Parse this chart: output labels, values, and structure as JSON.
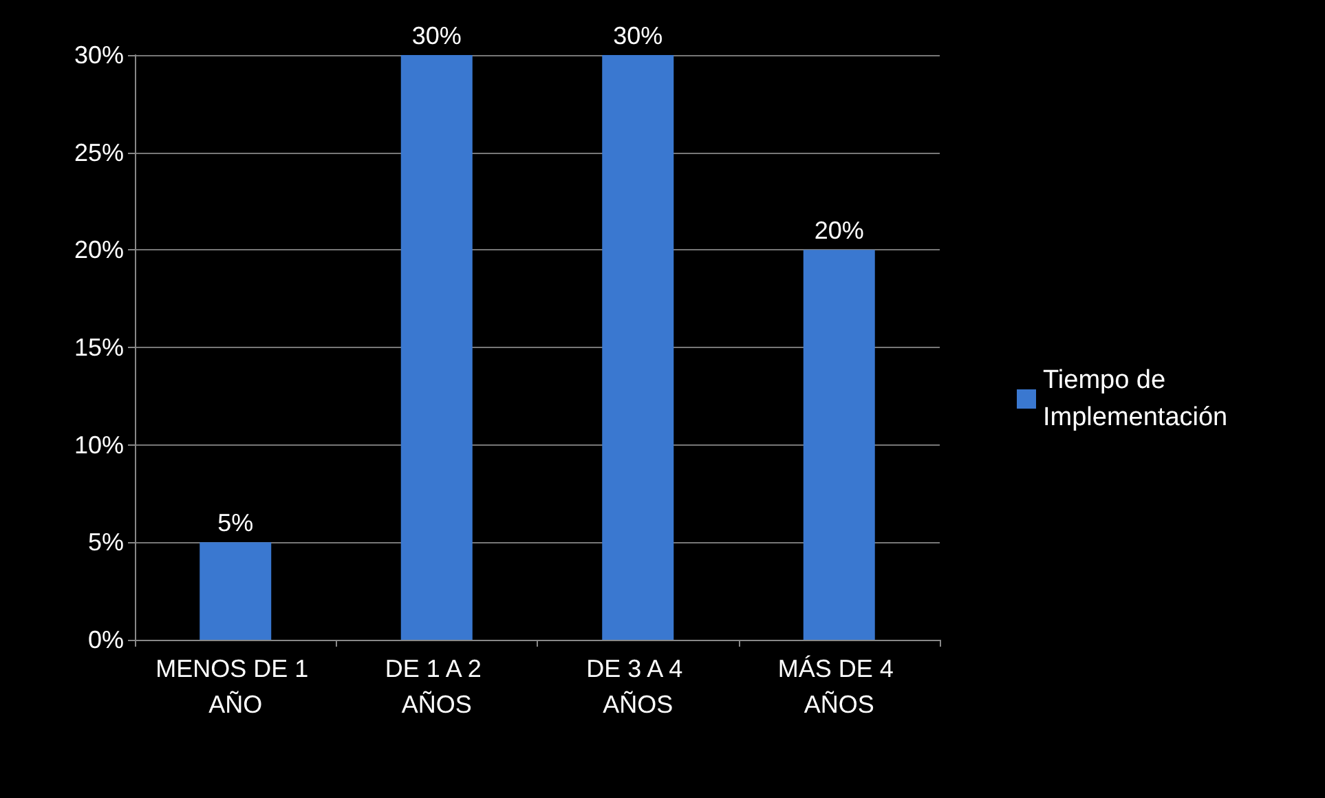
{
  "chart_data": {
    "type": "bar",
    "categories": [
      "MENOS DE 1 AÑO",
      "DE 1 A 2 AÑOS",
      "DE 3 A 4 AÑOS",
      "MÁS DE 4 AÑOS"
    ],
    "series": [
      {
        "name": "Tiempo de Implementación",
        "color": "#3a78d0",
        "values": [
          5,
          30,
          30,
          20
        ],
        "value_labels": [
          "5%",
          "30%",
          "30%",
          "20%"
        ]
      }
    ],
    "ylim": [
      0,
      30
    ],
    "yticks": [
      {
        "value": 0,
        "label": "0%"
      },
      {
        "value": 5,
        "label": "5%"
      },
      {
        "value": 10,
        "label": "10%"
      },
      {
        "value": 15,
        "label": "15%"
      },
      {
        "value": 20,
        "label": "20%"
      },
      {
        "value": 25,
        "label": "25%"
      },
      {
        "value": 30,
        "label": "30%"
      }
    ],
    "grid": "y",
    "legend": "right"
  }
}
